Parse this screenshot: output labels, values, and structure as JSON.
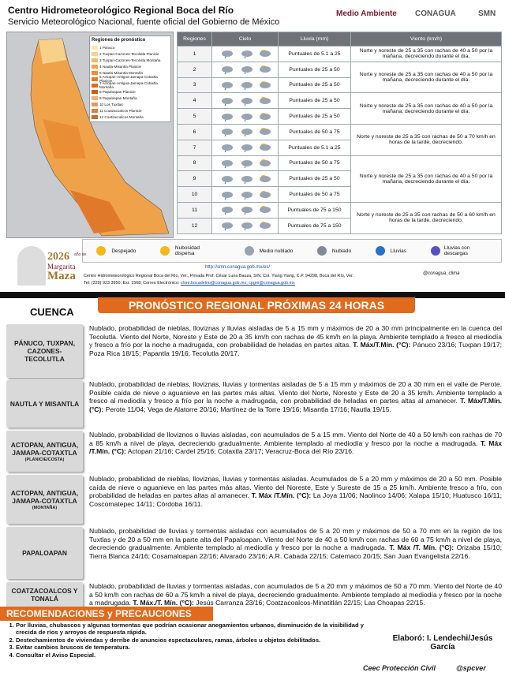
{
  "header": {
    "title": "Centro Hidrometeorológico Regional Boca del Río",
    "subtitle": "Servicio Meteorológico Nacional, fuente oficial del Gobierno de México",
    "logos": [
      "Medio Ambiente",
      "CONAGUA",
      "SMN"
    ]
  },
  "map": {
    "legend_title": "Regiones de pronóstico",
    "regions": [
      "1 Pánuco",
      "2 Tuxpan-Cazones-Tecolutla Planicie",
      "3 Tuxpan-Cazones-Tecolutla Montaña",
      "4 Nautla-Misantla Planicie",
      "5 Nautla-Misantla Montaña",
      "6 Actopan-Antigua-Jamapa-Cotaxtla Planicie",
      "7 Actopan-Antigua-Jamapa-Cotaxtla Montaña",
      "8 Papaloapan Planicie",
      "9 Papaloapan Montaña",
      "10 Los Tuxtlas",
      "11 Coatzacoalcos Planicie",
      "12 Coatzacoalcos Montaña"
    ]
  },
  "table": {
    "columns": [
      "Regiones",
      "Cielo",
      "Lluvia (mm)",
      "Viento (km/h)"
    ],
    "rows": [
      {
        "region": "1",
        "lluvia": "Puntuales de 5.1 a 25",
        "viento": "Norte y noreste de 25 a 35 con rachas de 40 a 50 por la mañana, decreciendo durante el día."
      },
      {
        "region": "2",
        "lluvia": "Puntuales de 25 a 50",
        "viento": "Norte y noreste de 25 a 35 con rachas de 40 a 50 por la mañana, decreciendo durante el día."
      },
      {
        "region": "3",
        "lluvia": "Puntuales de 25 a 50",
        "viento": null
      },
      {
        "region": "4",
        "lluvia": "Puntuales de 25 a 50",
        "viento": "Norte y noreste de 25 a 35 con rachas de 40 a 50 por la mañana, decreciendo durante el día."
      },
      {
        "region": "5",
        "lluvia": "Puntuales de 25 a 50",
        "viento": null
      },
      {
        "region": "6",
        "lluvia": "Puntuales de 50 a 75",
        "viento": "Norte y noreste de 25 a 35 con rachas de 50 a 70 km/h en horas de la tarde, decreciendo."
      },
      {
        "region": "7",
        "lluvia": "Puntuales de 5.1 a 25",
        "viento": null
      },
      {
        "region": "8",
        "lluvia": "Puntuales de 50 a 75",
        "viento": "Norte y noreste de 25 a 35 con rachas de 40 a 50 por la mañana, decreciendo durante el día."
      },
      {
        "region": "9",
        "lluvia": "Puntuales de 25 a 50",
        "viento": null
      },
      {
        "region": "10",
        "lluvia": "Puntuales de 50 a 75",
        "viento": null
      },
      {
        "region": "11",
        "lluvia": "Puntuales de 75 a 150",
        "viento": "Norte y noreste de 25 a 35 con rachas de 50 a 60 km/h en horas de la tarde, decreciendo."
      },
      {
        "region": "12",
        "lluvia": "Puntuales de 75 a 150",
        "viento": null
      }
    ]
  },
  "sky_legend": [
    "Despejado",
    "Nubosidad dispersa",
    "Medio nublado",
    "Nublado",
    "Lluvias",
    "Lluvias con descargas"
  ],
  "footer": {
    "year": "2026",
    "year_text": "año de",
    "name_first": "Margarita",
    "name_last": "Maza",
    "url": "http://smn.conagua.gob.mx/es/",
    "address": "Centro Hidrometeorológico Regional Boca del Río, Ver., Privada Prof. César Luna Bauza, S/N, Col. Yiang Yiang, C.P. 94298, Boca del Río, Ver.",
    "contact": "Tel: (229) 923 3950, Ext. 1568; Correo Electrónico:",
    "emails": "chmr.bocadelrio@conagua.gob.mx; cpgm@conagua.gob.mx",
    "social": "@conagua_clima"
  },
  "forecast": {
    "title": "PRONÓSTICO REGIONAL PRÓXIMAS 24 HORAS",
    "column_title": "CUENCA",
    "regions": [
      {
        "name": "PÁNUCO, TUXPAN, CAZONES-TECOLUTLA",
        "note": null,
        "text": "Nublado, probabilidad de nieblas, lloviznas y lluvias aisladas de 5 a 15 mm y máximos de 20 a 30 mm principalmente en la cuenca del Tecolutla. Viento del Norte, Noreste y Este de 20 a 35 km/h con rachas de 45 km/h en la playa. Ambiente templado a fresco al mediodía y fresco a frío por la noche a madrugada, con probabilidad de heladas en partes altas.",
        "temp_label": "T. Máx/T.Mín. (°C):",
        "temps": "Pánuco 23/16; Tuxpan 19/17; Poza Rica 18/15; Papantla 19/16; Tecolutla 20/17."
      },
      {
        "name": "NAUTLA Y MISANTLA",
        "note": null,
        "text": "Nublado, probabilidad de nieblas, lloviznas, lluvias y tormentas aisladas de 5 a 15 mm y máximos de 20 a 30 mm en el valle de Perote. Posible caída de nieve o aguanieve en las partes más altas. Viento del Norte, Noreste y Este de 20 a 35 km/h. Ambiente templado a fresco al mediodía y fresco a frío por la noche a madrugada, con probabilidad de heladas en partes altas al amanecer.",
        "temp_label": "T. Máx/T.Mín. (°C):",
        "temps": "Perote 11/04; Vega de Alatorre 20/16; Martínez de la Torre 19/16; Misantla 17/16; Nautla 19/15."
      },
      {
        "name": "ACTOPAN, ANTIGUA, JAMAPA-COTAXTLA",
        "note": "(PLANICIE/COSTA)",
        "text": "Nublado, probabilidad de lloviznos o lluvias aisladas, con acumulados de 5 a 15 mm. Viento del Norte de 40 a 50 km/h con rachas de 70 a 85 km/h a nivel de playa, decreciendo gradualmente. Ambiente templado al mediodía y fresco por la noche a madrugada.",
        "temp_label": "T. Máx /T.Mín. (°C):",
        "temps": "Actopan 21/16; Cardel 25/16; Cotaxtla 23/17; Veracruz-Boca del Río 23/16."
      },
      {
        "name": "ACTOPAN, ANTIGUA, JAMAPA-COTAXTLA",
        "note": "(MONTAÑA)",
        "text": "Nublado, probabilidad de nieblas, lloviznas, lluvias y tormentas aisladas. Acumulados de 5 a 20 mm y máximos de 20 a 50 mm. Posible caída de nieve o aguanieve en las partes más altas. Viento del Noreste, Este y Sureste de 15 a 25 km/h. Ambiente fresco a frío, con probabilidad de heladas en partes altas al amanecer.",
        "temp_label": "T. Máx /T.Mín. (°C):",
        "temps": "La Joya 11/06; Naolinco 14/06; Xalapa 15/10; Huatusco 16/11; Coscomatepec 14/11; Córdoba 16/11."
      },
      {
        "name": "PAPALOAPAN",
        "note": null,
        "text": "Nublado, probabilidad de lluvias y tormentas aisladas con acumulados de 5 a 20 mm y máximos de 50 a 70 mm en la región de los Tuxtlas y de 20 a 50 mm en la parte alta del Papaloapan. Viento del Norte de 40 a 50 km/h con rachas de 60 a 75 km/h a nivel de playa, decreciendo gradualmente. Ambiente templado al mediodía y fresco por la noche a madrugada.",
        "temp_label": "T. Máx /T. Mín. (°C):",
        "temps": "Orizaba 15/10; Tierra Blanca 24/16; Cosamaloapan 22/16; Alvarado 23/16; A.R. Cabada 22/15; Catemaco 20/15; San Juan Evangelista 22/16."
      },
      {
        "name": "COATZACOALCOS Y TONALÁ",
        "note": null,
        "text": "Nublado, probabilidad de lluvias y tormentas aisladas, con acumulados de 5 a 20 mm y máximos de 50 a 70 mm. Viento del Norte de 40 a 50 km/h con rachas de 60 a 75 km/h a nivel de playa, decreciendo gradualmente. Ambiente templado al mediodía y fresco por la noche a madrugada.",
        "temp_label": "T. Máx./T. Mín. (°C):",
        "temps": "Jesús Carranza 23/16; Coatzacoalcos-Minatitlán 22/15; Las Choapas 22/15."
      }
    ]
  },
  "recommendations": {
    "title": "RECOMENDACIONES y PRECAUCIONES",
    "items": [
      "Por lluvias, chubascos y algunas tormentas que podrían ocasionar anegamientos urbanos, disminución de la visibilidad y crecida de ríos y arroyos de respuesta rápida.",
      "Destechamientos de viviendas y derribe de anuncios espectaculares, ramas, árboles u objetos debilitados.",
      "Evitar cambios bruscos de temperatura.",
      "Consultar el Aviso Especial."
    ],
    "author": "Elaboró: I. Lendechi/Jesús García",
    "org": "Ceec Protección Civil",
    "social": "@spcver"
  }
}
